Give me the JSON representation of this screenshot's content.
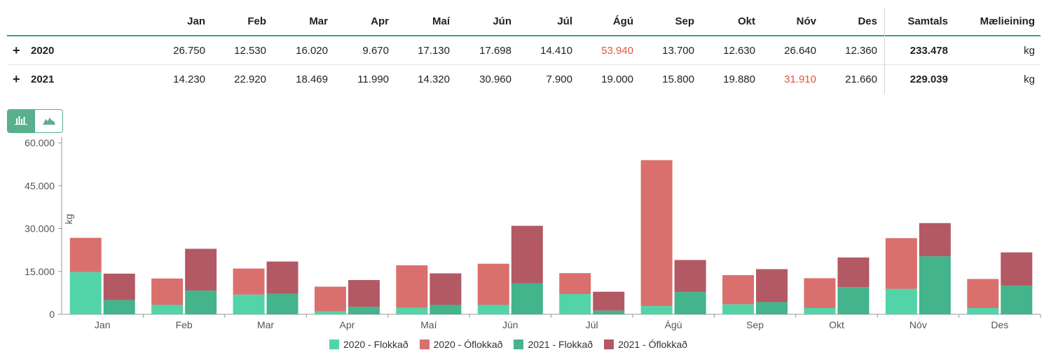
{
  "table": {
    "headers": [
      "Jan",
      "Feb",
      "Mar",
      "Apr",
      "Maí",
      "Jún",
      "Júl",
      "Ágú",
      "Sep",
      "Okt",
      "Nóv",
      "Des",
      "Samtals",
      "Mælieining"
    ],
    "rows": [
      {
        "label": "2020",
        "values": [
          "26.750",
          "12.530",
          "16.020",
          "9.670",
          "17.130",
          "17.698",
          "14.410",
          "53.940",
          "13.700",
          "12.630",
          "26.640",
          "12.360"
        ],
        "highlight_index": 7,
        "total": "233.478",
        "unit": "kg"
      },
      {
        "label": "2021",
        "values": [
          "14.230",
          "22.920",
          "18.469",
          "11.990",
          "14.320",
          "30.960",
          "7.900",
          "19.000",
          "15.800",
          "19.880",
          "31.910",
          "21.660"
        ],
        "highlight_index": 10,
        "total": "229.039",
        "unit": "kg"
      }
    ],
    "highlight_color": "#e8533b",
    "accent_color": "#3aa17e"
  },
  "toggles": {
    "bar_icon": "bar-chart-icon",
    "area_icon": "area-chart-icon",
    "active": "bar"
  },
  "chart_data": {
    "type": "bar",
    "stacked": true,
    "categories": [
      "Jan",
      "Feb",
      "Mar",
      "Apr",
      "Maí",
      "Jún",
      "Júl",
      "Ágú",
      "Sep",
      "Okt",
      "Nóv",
      "Des"
    ],
    "ylabel": "kg",
    "ylim": [
      0,
      60000
    ],
    "yticks": [
      0,
      15000,
      30000,
      45000,
      60000
    ],
    "ytick_labels": [
      "0",
      "15.000",
      "30.000",
      "45.000",
      "60.000"
    ],
    "grid": false,
    "legend_position": "bottom",
    "groups": [
      {
        "year": "2020",
        "series": [
          {
            "name": "2020 - Flokkað",
            "color": "#52d4a8",
            "values": [
              14800,
              3300,
              6900,
              1100,
              2300,
              3300,
              7100,
              2900,
              3500,
              2200,
              8900,
              2200
            ]
          },
          {
            "name": "2020 - Óflokkað",
            "color": "#d9706d",
            "values": [
              11950,
              9230,
              9120,
              8570,
              14830,
              14398,
              7310,
              51040,
              10200,
              10430,
              17740,
              10160
            ]
          }
        ]
      },
      {
        "year": "2021",
        "series": [
          {
            "name": "2021 - Flokkað",
            "color": "#43b48b",
            "values": [
              5000,
              8300,
              7200,
              2600,
              3300,
              10900,
              1300,
              7800,
              4300,
              9500,
              20300,
              10000
            ]
          },
          {
            "name": "2021 - Óflokkað",
            "color": "#b35964",
            "values": [
              9230,
              14620,
              11269,
              9390,
              11020,
              20060,
              6600,
              11200,
              11500,
              10380,
              11610,
              11660
            ]
          }
        ]
      }
    ]
  }
}
